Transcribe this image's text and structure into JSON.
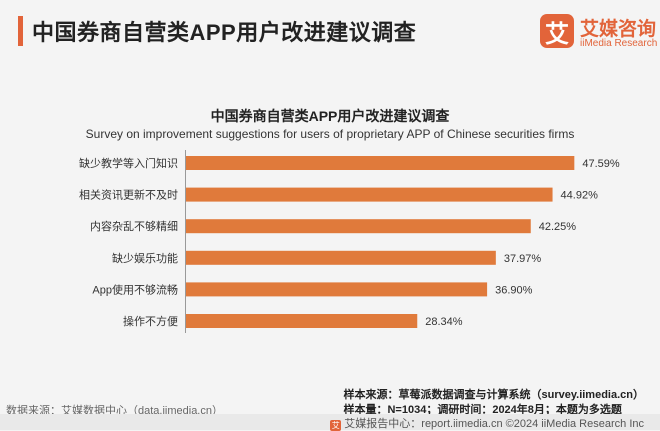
{
  "header": {
    "title": "中国券商自营类APP用户改进建议调查",
    "logo_mark": "艾",
    "logo_cn": "艾媒咨询",
    "logo_en": "iiMedia Research"
  },
  "colors": {
    "accent": "#e2643a",
    "bar": "#e07a3b"
  },
  "chart_data": {
    "type": "bar",
    "orientation": "horizontal",
    "title": "中国券商自营类APP用户改进建议调查",
    "subtitle": "Survey on improvement suggestions for users of proprietary APP of Chinese securities firms",
    "categories": [
      "缺少教学等入门知识",
      "相关资讯更新不及时",
      "内容杂乱不够精细",
      "缺少娱乐功能",
      "App使用不够流畅",
      "操作不方便"
    ],
    "values": [
      47.59,
      44.92,
      42.25,
      37.97,
      36.9,
      28.34
    ],
    "value_labels": [
      "47.59%",
      "44.92%",
      "42.25%",
      "37.97%",
      "36.90%",
      "28.34%"
    ],
    "xlim": [
      0,
      50
    ],
    "grid": false,
    "legend": "none"
  },
  "footer": {
    "source": "数据来源：艾媒数据中心（data.iimedia.cn）",
    "sample_source": "样本来源：草莓派数据调查与计算系统（survey.iimedia.cn）",
    "sample_info": "样本量：N=1034；调研时间：2024年8月；本题为多选题",
    "bar_logo": "艾",
    "bar_text": "艾媒报告中心：report.iimedia.cn    ©2024  iiMedia Research  Inc"
  }
}
